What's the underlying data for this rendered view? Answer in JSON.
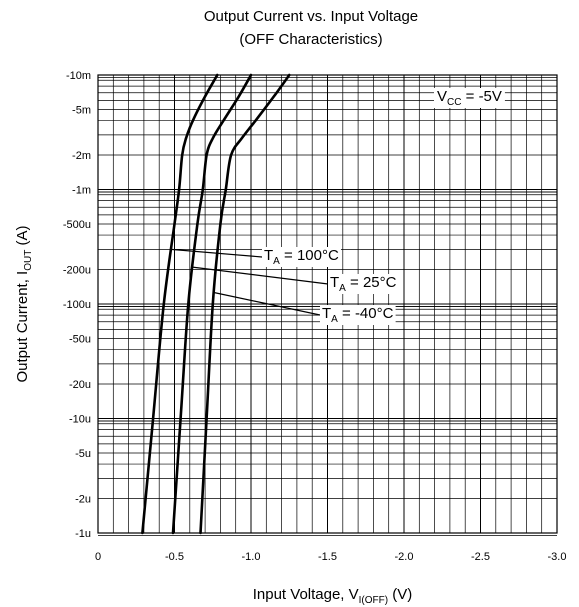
{
  "chart_data": {
    "type": "line",
    "title": "Output Current vs. Input Voltage",
    "subtitle": "(OFF Characteristics)",
    "xlabel": {
      "main": "Input Voltage, V",
      "sub": "I(OFF)",
      "unit": " (V)"
    },
    "ylabel": {
      "main": "Output Current, I",
      "sub": "OUT",
      "unit": " (A)"
    },
    "xscale": "linear",
    "yscale": "log",
    "xlim": [
      0,
      -3.0
    ],
    "ylim": [
      1e-06,
      0.01
    ],
    "grid": true,
    "x_ticks": [
      0,
      -0.5,
      -1.0,
      -1.5,
      -2.0,
      -2.5,
      -3.0
    ],
    "x_tick_labels": [
      "0",
      "-0.5",
      "-1.0",
      "-1.5",
      "-2.0",
      "-2.5",
      "-3.0"
    ],
    "y_ticks": [
      0.01,
      0.005,
      0.002,
      0.001,
      0.0005,
      0.0002,
      0.0001,
      5e-05,
      2e-05,
      1e-05,
      5e-06,
      2e-06,
      1e-06
    ],
    "y_tick_labels": [
      "-10m",
      "-5m",
      "-2m",
      "-1m",
      "-500u",
      "-200u",
      "-100u",
      "-50u",
      "-20u",
      "-10u",
      "-5u",
      "-2u",
      "-1u"
    ],
    "annotations": [
      {
        "main": "V",
        "sub": "CC",
        "rest": " = -5V"
      }
    ],
    "series": [
      {
        "name": {
          "main": "T",
          "sub": "A",
          "rest": " = 100°C"
        },
        "x": [
          -0.29,
          -0.36,
          -0.43,
          -0.5,
          -0.53,
          -0.55,
          -0.575,
          -0.62,
          -0.7,
          -0.78
        ],
        "y": [
          1e-06,
          1e-05,
          0.0001,
          0.0005,
          0.001,
          0.002,
          0.0028,
          0.004,
          0.0065,
          0.01
        ]
      },
      {
        "name": {
          "main": "T",
          "sub": "A",
          "rest": " = 25°C"
        },
        "x": [
          -0.49,
          -0.54,
          -0.59,
          -0.65,
          -0.685,
          -0.71,
          -0.75,
          -0.82,
          -0.92,
          -1.0
        ],
        "y": [
          1e-06,
          1e-05,
          0.0001,
          0.0005,
          0.001,
          0.002,
          0.0028,
          0.004,
          0.0065,
          0.01
        ]
      },
      {
        "name": {
          "main": "T",
          "sub": "A",
          "rest": " = -40°C"
        },
        "x": [
          -0.67,
          -0.71,
          -0.75,
          -0.8,
          -0.835,
          -0.87,
          -0.94,
          -1.03,
          -1.15,
          -1.25
        ],
        "y": [
          1e-06,
          1e-05,
          0.0001,
          0.0005,
          0.001,
          0.002,
          0.0028,
          0.004,
          0.0065,
          0.01
        ]
      }
    ]
  }
}
